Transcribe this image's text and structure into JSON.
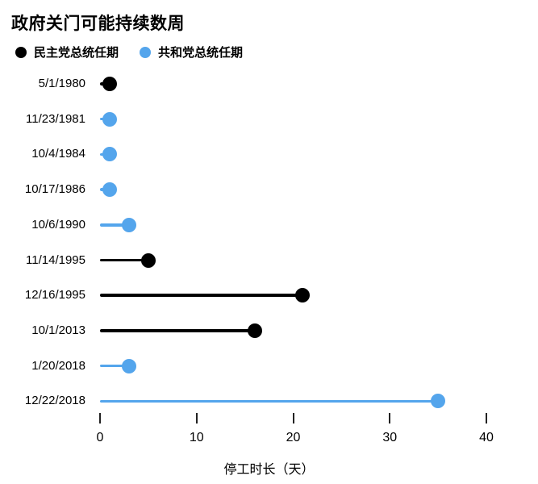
{
  "colors": {
    "democrat": "#000000",
    "republican": "#54a5ec",
    "tick": "#222222",
    "text": "#000000"
  },
  "legend": {
    "items": [
      {
        "label": "民主党总统任期",
        "party": "democrat",
        "color": "#000000"
      },
      {
        "label": "共和党总统任期",
        "party": "republican",
        "color": "#54a5ec"
      }
    ]
  },
  "chart_data": {
    "type": "bar",
    "subtype": "lollipop",
    "orientation": "horizontal",
    "title": "政府关门可能持续数周",
    "categories": [
      "5/1/1980",
      "11/23/1981",
      "10/4/1984",
      "10/17/1986",
      "10/6/1990",
      "11/14/1995",
      "12/16/1995",
      "10/1/2013",
      "1/20/2018",
      "12/22/2018"
    ],
    "values": [
      1,
      1,
      1,
      1,
      3,
      5,
      21,
      16,
      3,
      35
    ],
    "parties": [
      "democrat",
      "republican",
      "republican",
      "republican",
      "republican",
      "democrat",
      "democrat",
      "democrat",
      "republican",
      "republican"
    ],
    "xlabel": "停工时长（天）",
    "ylabel": "",
    "x_ticks": [
      0,
      10,
      20,
      30,
      40
    ],
    "xlim": [
      0,
      40
    ],
    "grid": false,
    "legend_position": "top-left"
  }
}
